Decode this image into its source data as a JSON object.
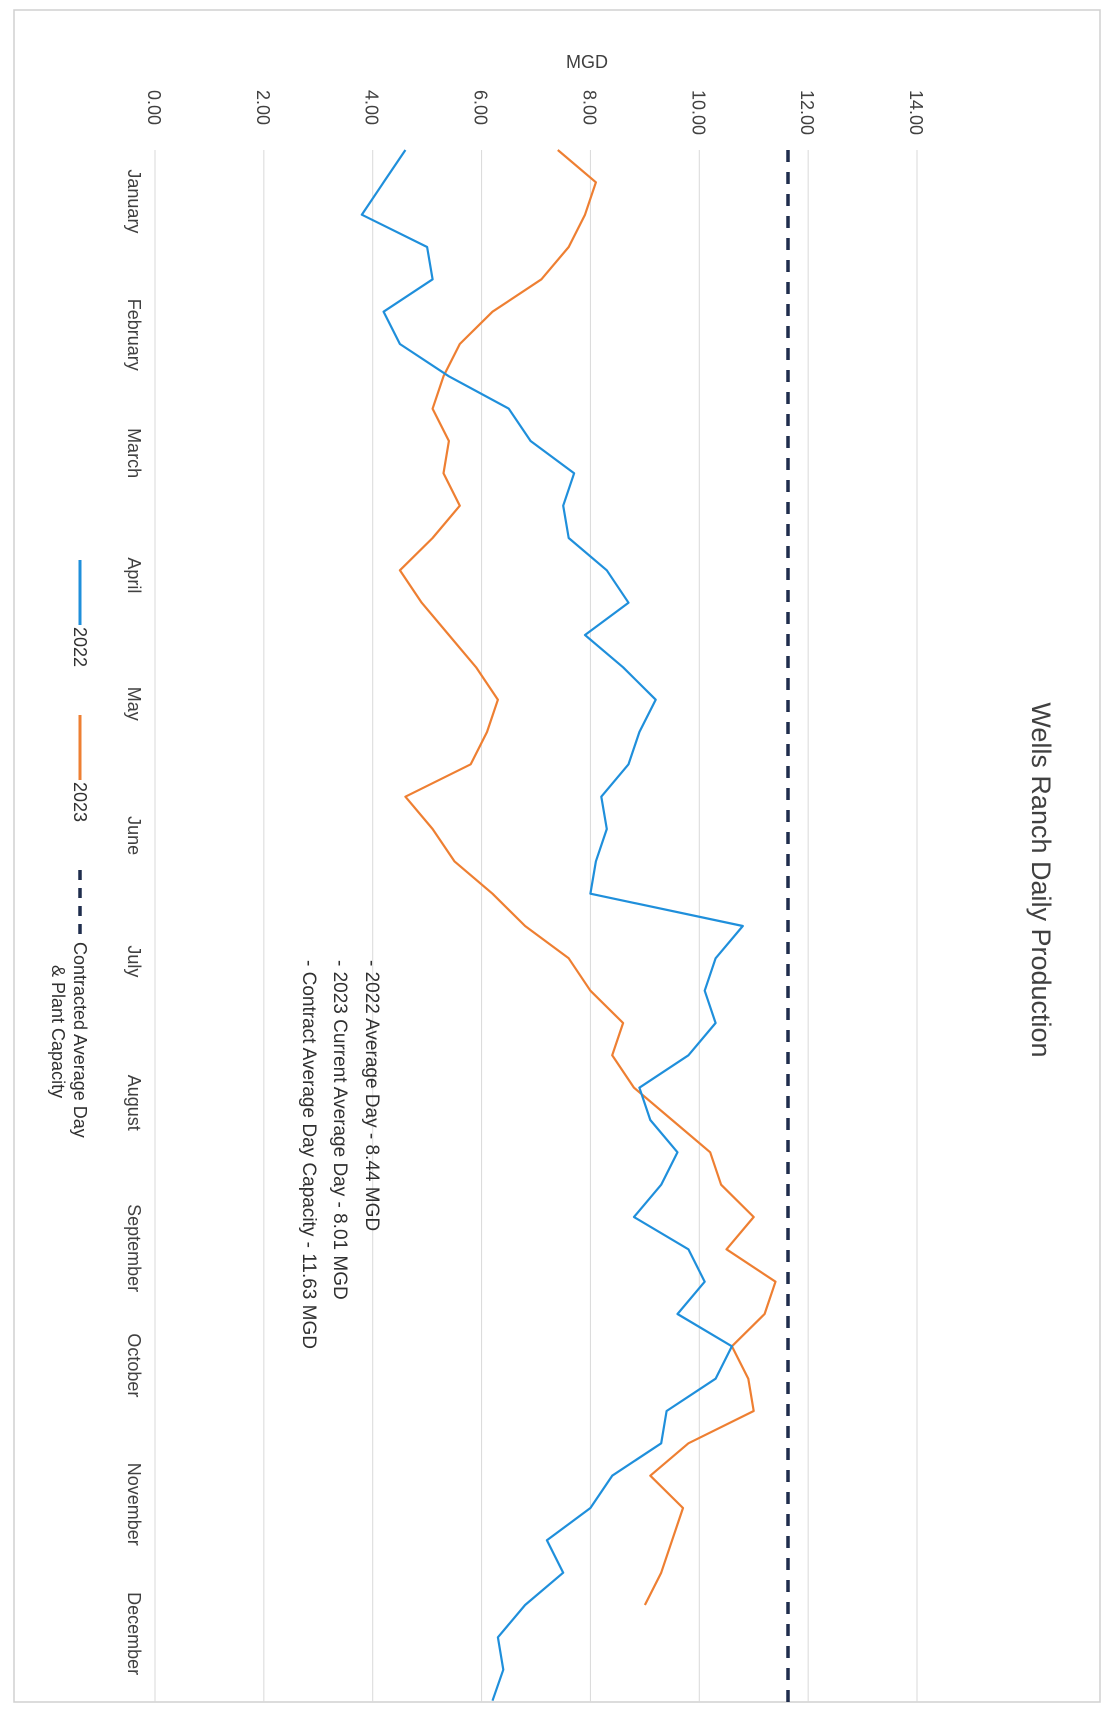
{
  "chart_data": {
    "type": "line",
    "title": "Wells Ranch Daily Production",
    "ylabel": "MGD",
    "ylim": [
      0,
      14
    ],
    "yticks": [
      "0.00",
      "2.00",
      "4.00",
      "6.00",
      "8.00",
      "10.00",
      "12.00",
      "14.00"
    ],
    "categories": [
      "January",
      "February",
      "March",
      "April",
      "May",
      "June",
      "July",
      "August",
      "September",
      "October",
      "November",
      "December"
    ],
    "grid": true,
    "legend_position": "bottom",
    "annotations": [
      "- 2022 Average Day - 8.44 MGD",
      "- 2023 Current Average Day - 8.01 MGD",
      "- Contract Average Day Capacity - 11.63 MGD"
    ],
    "series": [
      {
        "name": "2022",
        "color": "#1f8fdb",
        "style": "solid",
        "x": [
          0,
          0.25,
          0.5,
          0.75,
          1,
          1.25,
          1.5,
          1.75,
          2,
          2.25,
          2.5,
          2.75,
          3,
          3.25,
          3.5,
          3.75,
          4,
          4.25,
          4.5,
          4.75,
          5,
          5.25,
          5.5,
          5.75,
          6,
          6.25,
          6.5,
          6.75,
          7,
          7.25,
          7.5,
          7.75,
          8,
          8.25,
          8.5,
          8.75,
          9,
          9.25,
          9.5,
          9.75,
          10,
          10.25,
          10.5,
          10.75,
          11,
          11.25,
          11.5,
          11.75,
          11.99
        ],
        "values": [
          4.6,
          4.2,
          3.8,
          5.0,
          5.1,
          4.2,
          4.5,
          5.4,
          6.5,
          6.9,
          7.7,
          7.5,
          7.6,
          8.3,
          8.7,
          7.9,
          8.6,
          9.2,
          8.9,
          8.7,
          8.2,
          8.3,
          8.1,
          8.0,
          10.8,
          10.3,
          10.1,
          10.3,
          9.8,
          8.9,
          9.1,
          9.6,
          9.3,
          8.8,
          9.8,
          10.1,
          9.6,
          10.6,
          10.3,
          9.4,
          9.3,
          8.4,
          8.0,
          7.2,
          7.5,
          6.8,
          6.3,
          6.4,
          6.2
        ]
      },
      {
        "name": "2023",
        "color": "#ee7f32",
        "style": "solid",
        "x": [
          0,
          0.25,
          0.5,
          0.75,
          1,
          1.25,
          1.5,
          1.75,
          2,
          2.25,
          2.5,
          2.75,
          3,
          3.25,
          3.5,
          3.75,
          4,
          4.25,
          4.5,
          4.75,
          5,
          5.25,
          5.5,
          5.75,
          6,
          6.25,
          6.5,
          6.75,
          7,
          7.25,
          7.5,
          7.75,
          8,
          8.25,
          8.5,
          8.75,
          9,
          9.25,
          9.5,
          9.75,
          10,
          10.25,
          10.5,
          10.75,
          11,
          11.25
        ],
        "values": [
          7.4,
          8.1,
          7.9,
          7.6,
          7.1,
          6.2,
          5.6,
          5.3,
          5.1,
          5.4,
          5.3,
          5.6,
          5.1,
          4.5,
          4.9,
          5.4,
          5.9,
          6.3,
          6.1,
          5.8,
          4.6,
          5.1,
          5.5,
          6.2,
          6.8,
          7.6,
          8.0,
          8.6,
          8.4,
          8.8,
          9.5,
          10.2,
          10.4,
          11.0,
          10.5,
          11.4,
          11.2,
          10.6,
          10.9,
          11.0,
          9.8,
          9.1,
          9.7,
          9.5,
          9.3,
          9.0
        ]
      },
      {
        "name": "Contracted Average Day & Plant Capacity",
        "legend_line1": "Contracted Average Day",
        "legend_line2": "& Plant Capacity",
        "color": "#1f2d4d",
        "style": "dashed",
        "x": [
          0,
          12
        ],
        "values": [
          11.63,
          11.63
        ]
      }
    ]
  }
}
